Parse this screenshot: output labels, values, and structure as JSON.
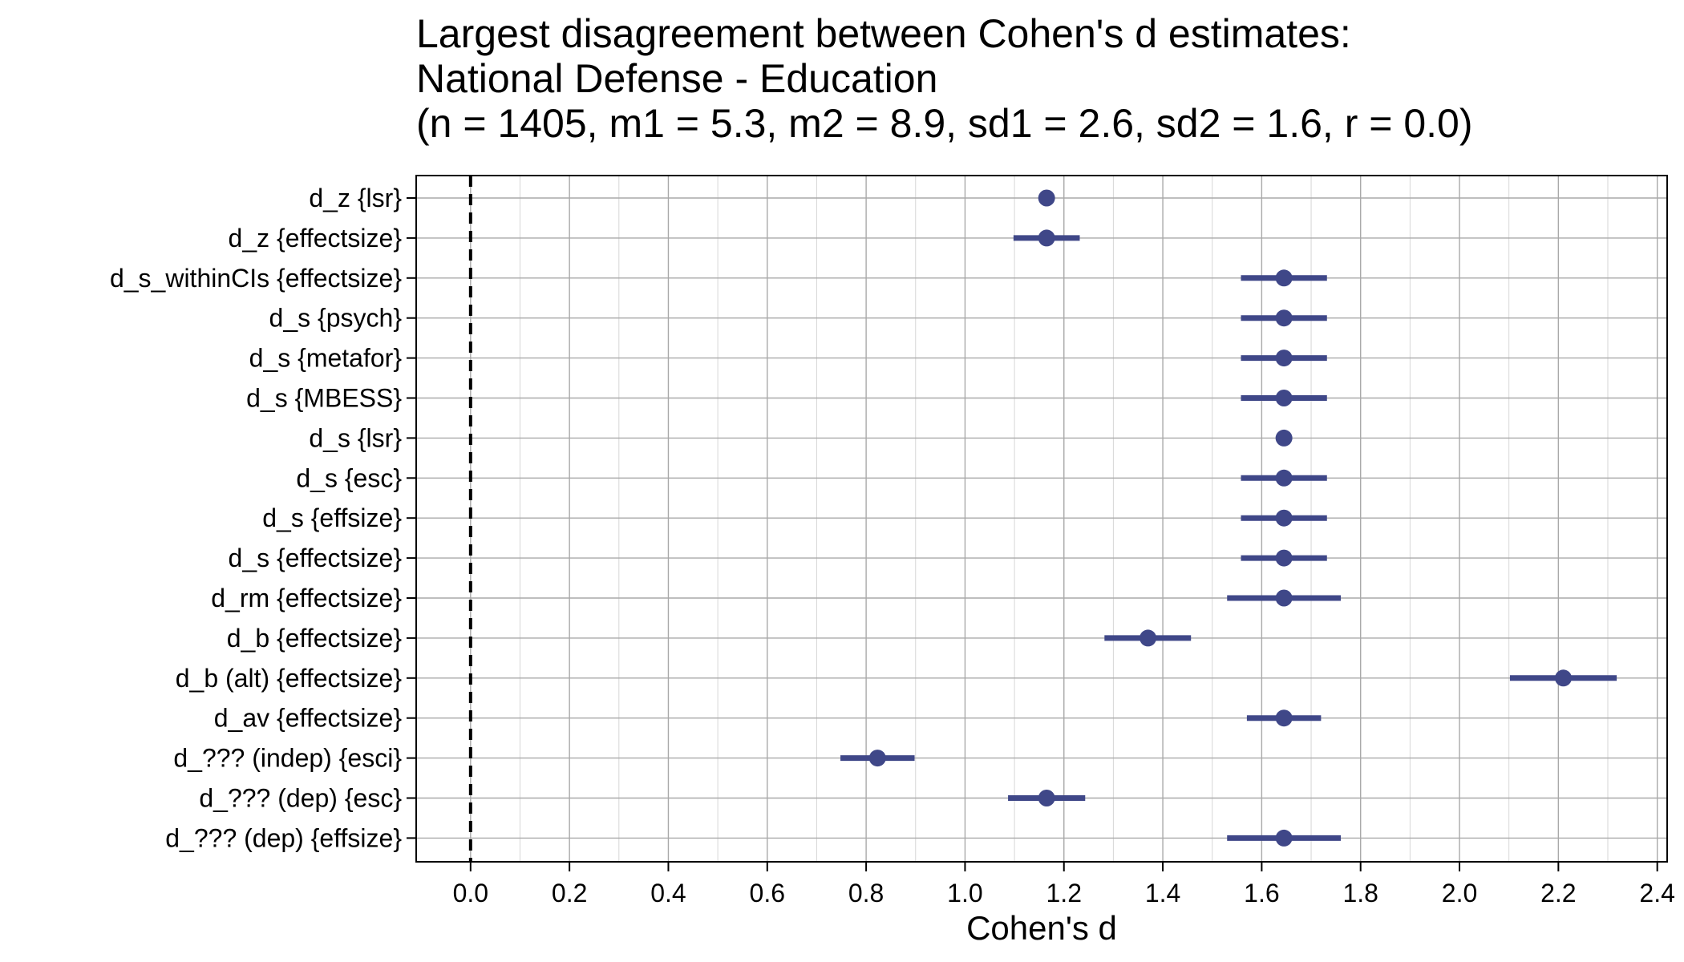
{
  "chart_data": {
    "type": "forest",
    "title_lines": [
      "Largest disagreement between Cohen's d estimates:",
      "National Defense - Education",
      "(n = 1405, m1 = 5.3, m2 = 8.9, sd1 = 2.6, sd2 = 1.6, r = 0.0)"
    ],
    "xlabel": "Cohen's d",
    "ylabel": "",
    "xlim": [
      -0.11,
      2.42
    ],
    "x_ticks": [
      "0.0",
      "0.2",
      "0.4",
      "0.6",
      "0.8",
      "1.0",
      "1.2",
      "1.4",
      "1.6",
      "1.8",
      "2.0",
      "2.2",
      "2.4"
    ],
    "x_tick_values": [
      0,
      0.2,
      0.4,
      0.6,
      0.8,
      1.0,
      1.2,
      1.4,
      1.6,
      1.8,
      2.0,
      2.2,
      2.4
    ],
    "reference_line": 0,
    "grid": true,
    "point_color": "#3f4788",
    "estimates": [
      {
        "label": "d_z {lsr}",
        "estimate": 1.165,
        "lower": null,
        "upper": null
      },
      {
        "label": "d_z {effectsize}",
        "estimate": 1.165,
        "lower": 1.098,
        "upper": 1.232
      },
      {
        "label": "d_s_withinCIs {effectsize}",
        "estimate": 1.645,
        "lower": 1.558,
        "upper": 1.732
      },
      {
        "label": "d_s {psych}",
        "estimate": 1.645,
        "lower": 1.558,
        "upper": 1.732
      },
      {
        "label": "d_s {metafor}",
        "estimate": 1.645,
        "lower": 1.558,
        "upper": 1.732
      },
      {
        "label": "d_s {MBESS}",
        "estimate": 1.645,
        "lower": 1.558,
        "upper": 1.732
      },
      {
        "label": "d_s {lsr}",
        "estimate": 1.645,
        "lower": null,
        "upper": null
      },
      {
        "label": "d_s {esc}",
        "estimate": 1.645,
        "lower": 1.558,
        "upper": 1.732
      },
      {
        "label": "d_s {effsize}",
        "estimate": 1.645,
        "lower": 1.558,
        "upper": 1.732
      },
      {
        "label": "d_s {effectsize}",
        "estimate": 1.645,
        "lower": 1.558,
        "upper": 1.732
      },
      {
        "label": "d_rm {effectsize}",
        "estimate": 1.645,
        "lower": 1.53,
        "upper": 1.76
      },
      {
        "label": "d_b {effectsize}",
        "estimate": 1.37,
        "lower": 1.282,
        "upper": 1.457
      },
      {
        "label": "d_b (alt) {effectsize}",
        "estimate": 2.21,
        "lower": 2.102,
        "upper": 2.318
      },
      {
        "label": "d_av {effectsize}",
        "estimate": 1.645,
        "lower": 1.57,
        "upper": 1.72
      },
      {
        "label": "d_??? (indep) {esci}",
        "estimate": 0.823,
        "lower": 0.748,
        "upper": 0.898
      },
      {
        "label": "d_??? (dep) {esc}",
        "estimate": 1.165,
        "lower": 1.087,
        "upper": 1.243
      },
      {
        "label": "d_??? (dep) {effsize}",
        "estimate": 1.645,
        "lower": 1.53,
        "upper": 1.76
      }
    ]
  }
}
